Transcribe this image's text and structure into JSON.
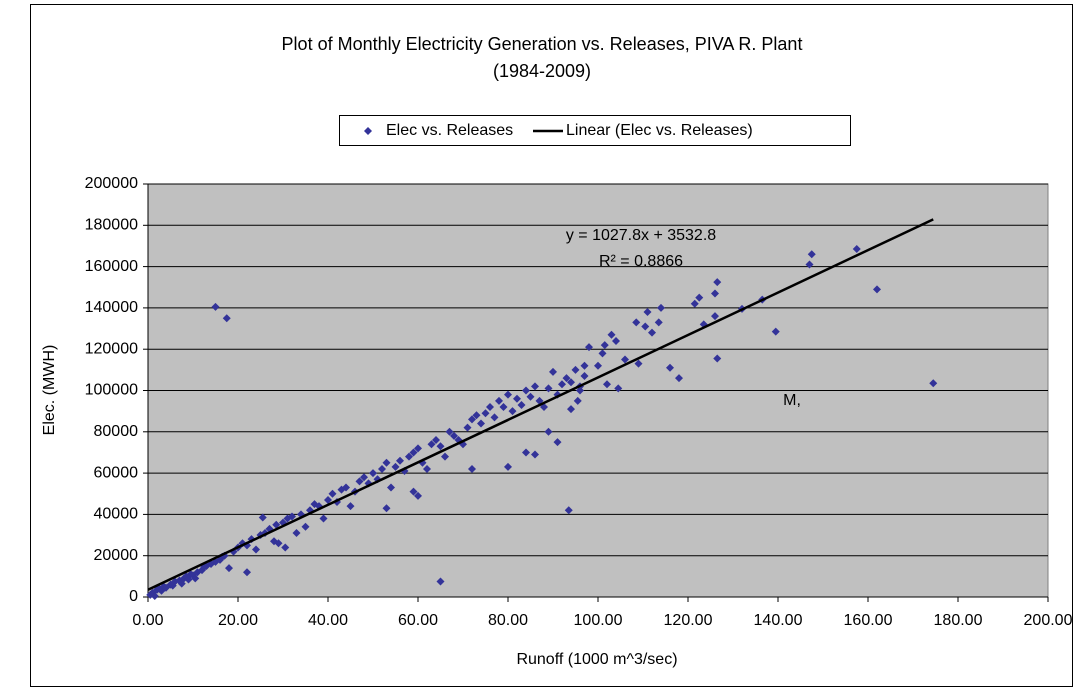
{
  "chart_data": {
    "type": "scatter",
    "title": "Plot of Monthly Electricity Generation vs. Releases, PIVA R. Plant",
    "subtitle": "(1984-2009)",
    "x_label": "Runoff (1000 m^3/sec)",
    "y_label": "Elec. (MWH)",
    "annotations": [
      "y = 1027.8x + 3532.8",
      "R² = 0.8866",
      "M,"
    ],
    "xlim": [
      0,
      200
    ],
    "ylim": [
      0,
      200000
    ],
    "xticks": [
      {
        "value": 0,
        "label": "0.00"
      },
      {
        "value": 20,
        "label": "20.00"
      },
      {
        "value": 40,
        "label": "40.00"
      },
      {
        "value": 60,
        "label": "60.00"
      },
      {
        "value": 80,
        "label": "80.00"
      },
      {
        "value": 100,
        "label": "100.00"
      },
      {
        "value": 120,
        "label": "120.00"
      },
      {
        "value": 140,
        "label": "140.00"
      },
      {
        "value": 160,
        "label": "160.00"
      },
      {
        "value": 180,
        "label": "180.00"
      },
      {
        "value": 200,
        "label": "200.00"
      }
    ],
    "yticks": [
      0,
      20000,
      40000,
      60000,
      80000,
      100000,
      120000,
      140000,
      160000,
      180000,
      200000
    ],
    "grid": true,
    "legend": "top",
    "series": [
      {
        "name": "Elec vs. Releases",
        "color": "#333399",
        "x": [
          0.5,
          1,
          1.5,
          2,
          2.5,
          3,
          3.5,
          4,
          5,
          5.5,
          6,
          7,
          7.5,
          8,
          8.5,
          9,
          9.5,
          10,
          10.5,
          11,
          12,
          12.5,
          13,
          14,
          15,
          16,
          16.5,
          17,
          19,
          20,
          21,
          22,
          23,
          24,
          25,
          25.5,
          26,
          27,
          28,
          28.5,
          29,
          30,
          30.5,
          31,
          32,
          33,
          34,
          35,
          36,
          37,
          38,
          39,
          40,
          41,
          42,
          43,
          44,
          45,
          46,
          47,
          48,
          49,
          50,
          51,
          52,
          53,
          54,
          55,
          56,
          57,
          58,
          59,
          60,
          61,
          62,
          63,
          64,
          65,
          66,
          67,
          68,
          69,
          70,
          71,
          72,
          73,
          74,
          75,
          76,
          77,
          78,
          79,
          80,
          81,
          82,
          83,
          84,
          85,
          86,
          87,
          88,
          89,
          90,
          91,
          92,
          93,
          94,
          95,
          96,
          97,
          15,
          17.5,
          65,
          93.5,
          174.5,
          162,
          157.5,
          147.5,
          147,
          139.5,
          136.5,
          132,
          126.5,
          126,
          126.5,
          126,
          123.5,
          122.5,
          121.5,
          118,
          116,
          114,
          113.5,
          112,
          111,
          110.5,
          109,
          108.5,
          106,
          104,
          103,
          101.5,
          101,
          100,
          102,
          104.5,
          98,
          97,
          96,
          95.5,
          94,
          91,
          89,
          86,
          84,
          80,
          72,
          60,
          59,
          53,
          22,
          18
        ],
        "values": [
          1000,
          2000,
          500,
          3500,
          4000,
          3000,
          5000,
          4500,
          6000,
          5500,
          7500,
          8000,
          6500,
          9000,
          10000,
          8500,
          11000,
          10500,
          9000,
          12000,
          13000,
          14500,
          15000,
          16000,
          17000,
          18000,
          19500,
          20000,
          22000,
          24000,
          26000,
          25000,
          28000,
          23000,
          30000,
          38500,
          31000,
          33000,
          27000,
          35000,
          26000,
          36000,
          24000,
          38000,
          39000,
          31000,
          40000,
          34000,
          42000,
          45000,
          44000,
          38000,
          47000,
          50000,
          46000,
          52000,
          53000,
          44000,
          51000,
          56000,
          58000,
          55000,
          60000,
          57000,
          62000,
          65000,
          53000,
          63000,
          66000,
          61000,
          68000,
          70000,
          72000,
          65000,
          62000,
          74000,
          76000,
          73000,
          68000,
          80000,
          78000,
          76000,
          74000,
          82000,
          86000,
          88000,
          84000,
          89000,
          92000,
          87000,
          95000,
          92000,
          98000,
          90000,
          96000,
          93000,
          100000,
          97000,
          102000,
          95000,
          92000,
          101000,
          109000,
          98000,
          103000,
          106000,
          104000,
          110000,
          102000,
          112000,
          140500,
          135000,
          7500,
          42000,
          103500,
          149000,
          168500,
          166000,
          161000,
          128500,
          144000,
          139500,
          152500,
          147000,
          115500,
          136000,
          132000,
          145000,
          142000,
          106000,
          111000,
          140000,
          133000,
          128000,
          138000,
          131000,
          113000,
          133000,
          115000,
          124000,
          127000,
          122000,
          118000,
          112000,
          103000,
          101000,
          121000,
          107000,
          100000,
          95000,
          91000,
          75000,
          80000,
          69000,
          70000,
          63000,
          62000,
          49000,
          51000,
          43000,
          12000,
          14000
        ]
      },
      {
        "name": "Linear (Elec vs. Releases)",
        "color": "#000000",
        "type": "line",
        "x": [
          0,
          174.5
        ],
        "values": [
          3532.8,
          182883.9
        ]
      }
    ]
  }
}
